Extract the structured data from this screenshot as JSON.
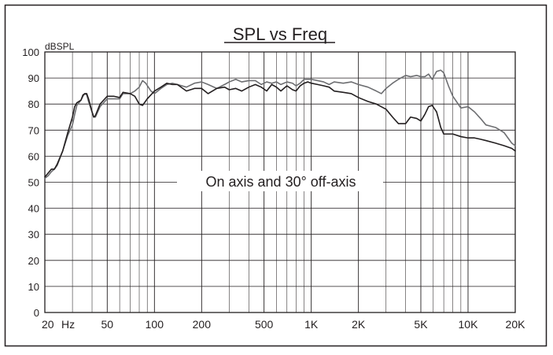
{
  "chart_data": {
    "type": "line",
    "title": "SPL vs Freq",
    "annotation": "On axis and 30° off-axis",
    "ylabel": "dBSPL",
    "x_unit_label": "Hz",
    "x_scale": "log",
    "xlim": [
      20,
      20000
    ],
    "ylim": [
      0,
      100
    ],
    "grid": true,
    "y_ticks": [
      0,
      10,
      20,
      30,
      40,
      50,
      60,
      70,
      80,
      90,
      100
    ],
    "x_ticks": [
      {
        "value": 20,
        "label": "20"
      },
      {
        "value": 50,
        "label": "50"
      },
      {
        "value": 100,
        "label": "100"
      },
      {
        "value": 200,
        "label": "200"
      },
      {
        "value": 500,
        "label": "500"
      },
      {
        "value": 1000,
        "label": "1K"
      },
      {
        "value": 2000,
        "label": "2K"
      },
      {
        "value": 5000,
        "label": "5K"
      },
      {
        "value": 10000,
        "label": "10K"
      },
      {
        "value": 20000,
        "label": "20K"
      }
    ],
    "series": [
      {
        "color": "#231f20",
        "points": [
          [
            20,
            52
          ],
          [
            21,
            53.5
          ],
          [
            22,
            55
          ],
          [
            23,
            55
          ],
          [
            24,
            57
          ],
          [
            26,
            62
          ],
          [
            28,
            69
          ],
          [
            30,
            75
          ],
          [
            31,
            79
          ],
          [
            32,
            80.5
          ],
          [
            34,
            81.5
          ],
          [
            35,
            83.5
          ],
          [
            36,
            84
          ],
          [
            37,
            84
          ],
          [
            38,
            82
          ],
          [
            40,
            77
          ],
          [
            41,
            75
          ],
          [
            42,
            75.5
          ],
          [
            45,
            80
          ],
          [
            50,
            83
          ],
          [
            55,
            83
          ],
          [
            60,
            82.5
          ],
          [
            63,
            84.5
          ],
          [
            70,
            84
          ],
          [
            75,
            83
          ],
          [
            80,
            80
          ],
          [
            84,
            79.5
          ],
          [
            90,
            82
          ],
          [
            100,
            85
          ],
          [
            110,
            86.5
          ],
          [
            120,
            88
          ],
          [
            130,
            87.5
          ],
          [
            140,
            87.5
          ],
          [
            160,
            85
          ],
          [
            180,
            86
          ],
          [
            200,
            86
          ],
          [
            220,
            84
          ],
          [
            250,
            86
          ],
          [
            280,
            86.5
          ],
          [
            300,
            85.5
          ],
          [
            330,
            86
          ],
          [
            360,
            85
          ],
          [
            400,
            86.5
          ],
          [
            440,
            87.5
          ],
          [
            480,
            86.5
          ],
          [
            520,
            85
          ],
          [
            560,
            87.5
          ],
          [
            600,
            86.5
          ],
          [
            640,
            85
          ],
          [
            700,
            87
          ],
          [
            760,
            85.5
          ],
          [
            800,
            85
          ],
          [
            850,
            87
          ],
          [
            900,
            88
          ],
          [
            950,
            88.5
          ],
          [
            1000,
            88
          ],
          [
            1100,
            87.5
          ],
          [
            1200,
            87
          ],
          [
            1300,
            86.5
          ],
          [
            1400,
            85
          ],
          [
            1600,
            84.5
          ],
          [
            1800,
            84
          ],
          [
            2000,
            82.5
          ],
          [
            2300,
            81
          ],
          [
            2600,
            80
          ],
          [
            3000,
            78
          ],
          [
            3300,
            75
          ],
          [
            3600,
            72.5
          ],
          [
            4000,
            72.5
          ],
          [
            4300,
            75
          ],
          [
            4700,
            74.5
          ],
          [
            5000,
            73.5
          ],
          [
            5300,
            76
          ],
          [
            5600,
            79
          ],
          [
            5900,
            79.5
          ],
          [
            6300,
            77
          ],
          [
            6700,
            71
          ],
          [
            7000,
            68.5
          ],
          [
            7500,
            68.5
          ],
          [
            8000,
            68.5
          ],
          [
            9000,
            67.5
          ],
          [
            10000,
            67
          ],
          [
            11000,
            67
          ],
          [
            12000,
            66.5
          ],
          [
            13000,
            66
          ],
          [
            15000,
            65
          ],
          [
            17000,
            64
          ],
          [
            19000,
            63
          ],
          [
            20000,
            62
          ]
        ]
      },
      {
        "color": "#6d6e71",
        "points": [
          [
            20,
            51.5
          ],
          [
            21,
            52.5
          ],
          [
            22,
            54
          ],
          [
            23,
            55
          ],
          [
            24,
            56.5
          ],
          [
            26,
            62
          ],
          [
            28,
            68
          ],
          [
            30,
            72
          ],
          [
            31,
            76
          ],
          [
            32,
            79.5
          ],
          [
            34,
            81.5
          ],
          [
            35,
            83
          ],
          [
            36,
            84
          ],
          [
            37,
            83.5
          ],
          [
            38,
            81
          ],
          [
            40,
            77
          ],
          [
            41,
            75
          ],
          [
            42,
            75
          ],
          [
            45,
            79
          ],
          [
            50,
            82
          ],
          [
            55,
            82
          ],
          [
            60,
            82
          ],
          [
            63,
            84
          ],
          [
            70,
            84
          ],
          [
            75,
            85
          ],
          [
            80,
            86.5
          ],
          [
            84,
            89
          ],
          [
            88,
            88
          ],
          [
            95,
            85
          ],
          [
            100,
            84
          ],
          [
            110,
            86
          ],
          [
            120,
            87.5
          ],
          [
            130,
            88
          ],
          [
            140,
            87.5
          ],
          [
            160,
            86.5
          ],
          [
            180,
            88
          ],
          [
            200,
            88.5
          ],
          [
            220,
            87.5
          ],
          [
            250,
            86
          ],
          [
            280,
            87.5
          ],
          [
            300,
            88.5
          ],
          [
            330,
            89.5
          ],
          [
            360,
            88.5
          ],
          [
            400,
            89
          ],
          [
            440,
            89
          ],
          [
            480,
            87.5
          ],
          [
            520,
            88.5
          ],
          [
            560,
            88
          ],
          [
            600,
            88.5
          ],
          [
            640,
            87.5
          ],
          [
            700,
            88.5
          ],
          [
            760,
            88
          ],
          [
            800,
            87
          ],
          [
            850,
            88
          ],
          [
            900,
            89.5
          ],
          [
            950,
            89.5
          ],
          [
            1000,
            89.5
          ],
          [
            1100,
            89
          ],
          [
            1200,
            88.5
          ],
          [
            1300,
            87.5
          ],
          [
            1400,
            88.5
          ],
          [
            1600,
            88
          ],
          [
            1800,
            88.5
          ],
          [
            2000,
            87.5
          ],
          [
            2300,
            86.5
          ],
          [
            2600,
            85
          ],
          [
            2800,
            84
          ],
          [
            3000,
            86
          ],
          [
            3300,
            88
          ],
          [
            3600,
            89.5
          ],
          [
            4000,
            91
          ],
          [
            4300,
            90.5
          ],
          [
            4700,
            91
          ],
          [
            5000,
            90.5
          ],
          [
            5300,
            90.5
          ],
          [
            5600,
            91.5
          ],
          [
            5900,
            89.5
          ],
          [
            6300,
            92.5
          ],
          [
            6700,
            93
          ],
          [
            7000,
            92
          ],
          [
            7500,
            87
          ],
          [
            8000,
            83
          ],
          [
            9000,
            78.5
          ],
          [
            10000,
            79
          ],
          [
            11000,
            77
          ],
          [
            12000,
            74.5
          ],
          [
            13000,
            72
          ],
          [
            14000,
            71.5
          ],
          [
            15000,
            71
          ],
          [
            17000,
            69
          ],
          [
            19000,
            65
          ],
          [
            20000,
            64
          ]
        ]
      }
    ]
  }
}
